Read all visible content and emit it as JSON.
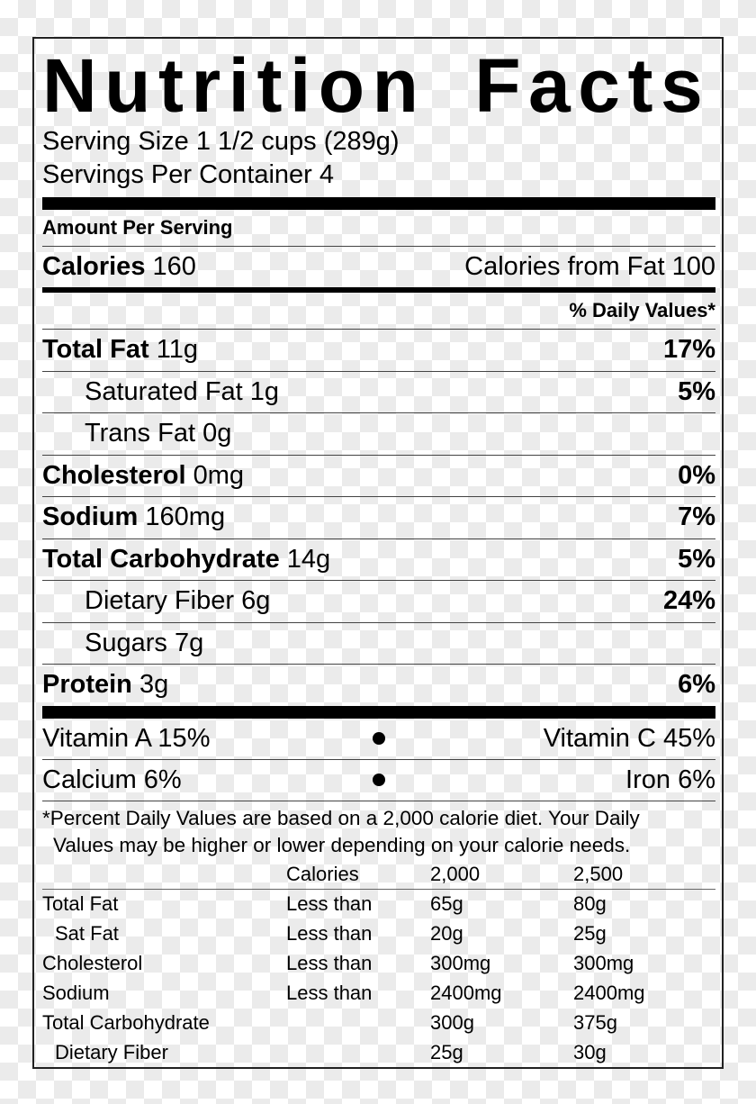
{
  "title": "Nutrition Facts",
  "serving_size": "Serving Size 1 1/2 cups (289g)",
  "servings_per_container": "Servings Per Container 4",
  "amount_per_serving": "Amount Per Serving",
  "calories": {
    "label": "Calories",
    "value": "160",
    "from_fat": "Calories from Fat 100"
  },
  "daily_values_header": "% Daily Values*",
  "nutrients": [
    {
      "label": "Total Fat",
      "amount": "11g",
      "dv": "17%"
    },
    {
      "label": "Saturated Fat",
      "amount": "1g",
      "dv": "5%"
    },
    {
      "label": "Trans Fat",
      "amount": "0g",
      "dv": ""
    },
    {
      "label": "Cholesterol",
      "amount": "0mg",
      "dv": "0%"
    },
    {
      "label": "Sodium",
      "amount": "160mg",
      "dv": "7%"
    },
    {
      "label": "Total Carbohydrate",
      "amount": "14g",
      "dv": "5%"
    },
    {
      "label": "Dietary Fiber",
      "amount": "6g",
      "dv": "24%"
    },
    {
      "label": "Sugars",
      "amount": "7g",
      "dv": ""
    },
    {
      "label": "Protein",
      "amount": "3g",
      "dv": "6%"
    }
  ],
  "vitamins": [
    {
      "left": "Vitamin A 15%",
      "right": "Vitamin C 45%"
    },
    {
      "left": "Calcium 6%",
      "right": "Iron 6%"
    }
  ],
  "footnote": {
    "line1": "*Percent Daily Values are based on a 2,000 calorie diet. Your Daily",
    "line2": "Values may be higher or lower depending on your calorie needs."
  },
  "reference_table": {
    "header": [
      "",
      "Calories",
      "2,000",
      "2,500"
    ],
    "rows": [
      [
        "Total Fat",
        "Less than",
        "65g",
        "80g"
      ],
      [
        "Sat Fat",
        "Less than",
        "20g",
        "25g"
      ],
      [
        "Cholesterol",
        "Less than",
        "300mg",
        "300mg"
      ],
      [
        "Sodium",
        "Less than",
        "2400mg",
        "2400mg"
      ],
      [
        "Total Carbohydrate",
        "",
        "300g",
        "375g"
      ],
      [
        "Dietary Fiber",
        "",
        "25g",
        "30g"
      ]
    ]
  }
}
